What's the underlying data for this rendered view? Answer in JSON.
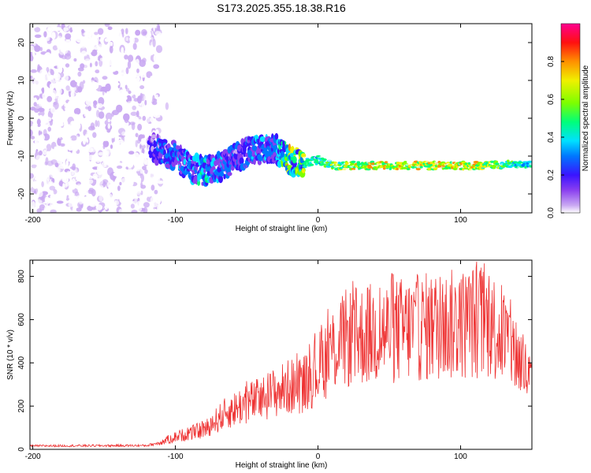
{
  "title": "S173.2025.355.18.38.R16",
  "chart_data": [
    {
      "type": "heatmap",
      "xlabel": "Height of straight line (km)",
      "ylabel": "Frequency (Hz)",
      "xlim": [
        -202,
        150
      ],
      "ylim": [
        -25,
        25
      ],
      "x_ticks": [
        -200,
        -100,
        0,
        100
      ],
      "x_tick_labels": [
        "-200",
        "-100",
        "0",
        "100"
      ],
      "y_ticks": [
        -20,
        -10,
        0,
        10,
        20
      ],
      "y_tick_labels": [
        "-20",
        "-10",
        "0",
        "10",
        "20"
      ],
      "colorbar": {
        "label": "Normalized spectral amplitude",
        "range": [
          0,
          1
        ],
        "ticks": [
          0.0,
          0.2,
          0.4,
          0.6,
          0.8
        ],
        "tick_labels": [
          "0.0",
          "0.2",
          "0.4",
          "0.6",
          "0.8"
        ],
        "colors": [
          "#ffffff",
          "#c9a8f2",
          "#8a3ff0",
          "#3a14ff",
          "#0077ff",
          "#00e0ff",
          "#00ff7a",
          "#7cff00",
          "#f0f000",
          "#ff9000",
          "#ff1010",
          "#ff0090"
        ]
      },
      "ridge": {
        "description": "Dominant signal trace",
        "x_km": [
          -115,
          -100,
          -90,
          -80,
          -70,
          -60,
          -50,
          -40,
          -30,
          -20,
          -10,
          0,
          10,
          20,
          40,
          60,
          80,
          100,
          120,
          150
        ],
        "freq_hz": [
          -8,
          -10,
          -13,
          -14,
          -13,
          -11,
          -9,
          -8,
          -8,
          -11,
          -12,
          -11,
          -12.5,
          -12.5,
          -12.5,
          -12.5,
          -12.5,
          -12.5,
          -12.5,
          -12
        ],
        "amplitude": [
          0.3,
          0.35,
          0.4,
          0.45,
          0.4,
          0.35,
          0.35,
          0.4,
          0.35,
          0.7,
          0.6,
          0.55,
          0.7,
          0.75,
          0.8,
          0.8,
          0.8,
          0.8,
          0.75,
          0.5
        ]
      }
    },
    {
      "type": "line",
      "xlabel": "Height of straight line (km)",
      "ylabel": "SNR (10 * v/v)",
      "xlim": [
        -202,
        150
      ],
      "ylim": [
        0,
        875
      ],
      "x_ticks": [
        -200,
        -100,
        0,
        100
      ],
      "x_tick_labels": [
        "-200",
        "-100",
        "0",
        "100"
      ],
      "y_ticks": [
        0,
        200,
        400,
        600,
        800
      ],
      "y_tick_labels": [
        "0",
        "200",
        "400",
        "600",
        "800"
      ],
      "series": [
        {
          "name": "SNR",
          "color": "#ee3333",
          "envelope_x": [
            -202,
            -120,
            -110,
            -100,
            -80,
            -65,
            -50,
            -40,
            -30,
            -20,
            -10,
            0,
            10,
            20,
            40,
            60,
            80,
            100,
            110,
            120,
            130,
            140,
            150
          ],
          "envelope_y": [
            20,
            22,
            40,
            70,
            110,
            200,
            260,
            280,
            320,
            350,
            370,
            450,
            560,
            620,
            650,
            670,
            690,
            700,
            720,
            710,
            640,
            520,
            360
          ]
        }
      ]
    }
  ]
}
